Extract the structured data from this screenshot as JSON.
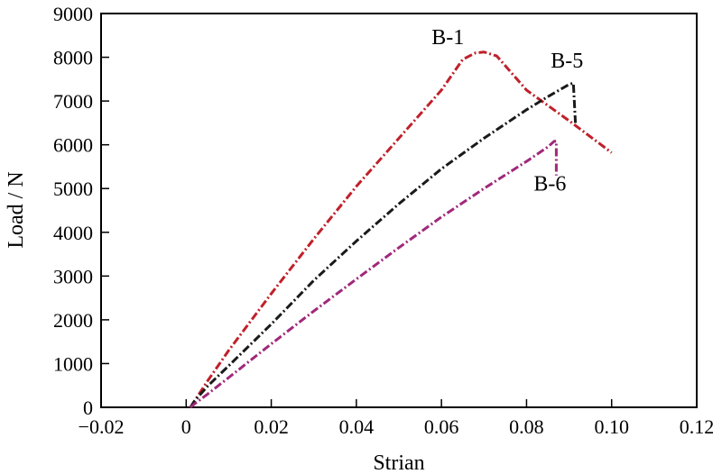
{
  "chart_data": {
    "type": "line",
    "title": "",
    "xlabel": "Strian",
    "ylabel": "Load / N",
    "xlim": [
      -0.02,
      0.12
    ],
    "ylim": [
      0,
      9000
    ],
    "xticks": [
      -0.02,
      0,
      0.02,
      0.04,
      0.06,
      0.08,
      0.1,
      0.12
    ],
    "xtick_labels": [
      "−0.02",
      "0",
      "0.02",
      "0.04",
      "0.06",
      "0.08",
      "0.10",
      "0.12"
    ],
    "yticks": [
      0,
      1000,
      2000,
      3000,
      4000,
      5000,
      6000,
      7000,
      8000,
      9000
    ],
    "ytick_labels": [
      "0",
      "1000",
      "2000",
      "3000",
      "4000",
      "5000",
      "6000",
      "7000",
      "8000",
      "9000"
    ],
    "grid": false,
    "legend": "none",
    "series": [
      {
        "name": "B-1",
        "color": "#c0202a",
        "dash": "dash-dot",
        "x": [
          0.001,
          0.002,
          0.005,
          0.01,
          0.02,
          0.03,
          0.04,
          0.05,
          0.06,
          0.065,
          0.068,
          0.07,
          0.073,
          0.08,
          0.09,
          0.1
        ],
        "y": [
          0,
          150,
          600,
          1300,
          2600,
          3850,
          5050,
          6150,
          7250,
          7950,
          8100,
          8120,
          8030,
          7250,
          6550,
          5820
        ]
      },
      {
        "name": "B-5",
        "color": "#1a1a1a",
        "dash": "dash-dot",
        "x": [
          0.001,
          0.002,
          0.005,
          0.01,
          0.02,
          0.03,
          0.04,
          0.05,
          0.06,
          0.07,
          0.08,
          0.085,
          0.09,
          0.091,
          0.0915
        ],
        "y": [
          0,
          150,
          480,
          950,
          1900,
          2900,
          3800,
          4650,
          5450,
          6150,
          6800,
          7100,
          7380,
          7410,
          6500
        ]
      },
      {
        "name": "B-6",
        "color": "#a0287a",
        "dash": "dash-dot",
        "x": [
          0.001,
          0.002,
          0.005,
          0.01,
          0.02,
          0.03,
          0.04,
          0.05,
          0.06,
          0.07,
          0.08,
          0.085,
          0.0865,
          0.087,
          0.087
        ],
        "y": [
          0,
          80,
          300,
          680,
          1450,
          2200,
          2930,
          3650,
          4350,
          5000,
          5620,
          5950,
          6080,
          6080,
          5300
        ]
      }
    ],
    "annotations": [
      {
        "text": "B-1",
        "x": 0.0615,
        "y": 8300,
        "series": "B-1"
      },
      {
        "text": "B-5",
        "x": 0.0895,
        "y": 7760,
        "series": "B-5"
      },
      {
        "text": "B-6",
        "x": 0.0855,
        "y": 4950,
        "series": "B-6"
      }
    ]
  }
}
